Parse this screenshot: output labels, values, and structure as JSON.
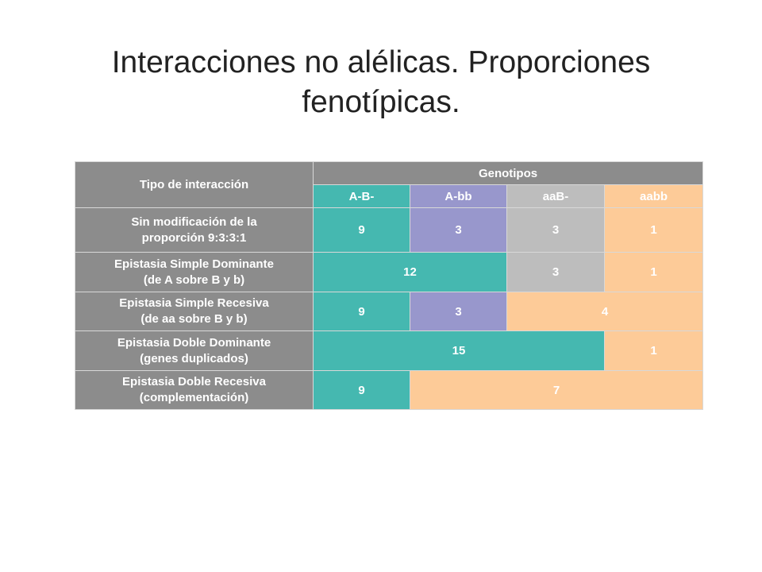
{
  "title": {
    "line1": "Interacciones no alélicas. Proporciones",
    "line2": "fenotípicas."
  },
  "colors": {
    "header": "#8c8c8c",
    "A-B-": "#45b8b0",
    "A-bb": "#9897cc",
    "aaB-": "#bdbdbd",
    "aabb": "#fdcb98"
  },
  "chart_data": {
    "type": "table",
    "header": {
      "row_header": "Tipo de interacción",
      "group_header": "Genotipos",
      "columns": [
        "A-B-",
        "A-bb",
        "aaB-",
        "aabb"
      ]
    },
    "rows": [
      {
        "label": [
          "Sin modificación de la",
          "proporción 9:3:3:1"
        ],
        "cells": [
          {
            "value": "9",
            "span": 1,
            "color": "#45b8b0"
          },
          {
            "value": "3",
            "span": 1,
            "color": "#9897cc"
          },
          {
            "value": "3",
            "span": 1,
            "color": "#bdbdbd"
          },
          {
            "value": "1",
            "span": 1,
            "color": "#fdcb98"
          }
        ]
      },
      {
        "label": [
          "Epistasia Simple Dominante",
          "(de A sobre B y b)"
        ],
        "cells": [
          {
            "value": "12",
            "span": 2,
            "color": "#45b8b0"
          },
          {
            "value": "3",
            "span": 1,
            "color": "#bdbdbd"
          },
          {
            "value": "1",
            "span": 1,
            "color": "#fdcb98"
          }
        ]
      },
      {
        "label": [
          "Epistasia Simple Recesiva",
          "(de aa sobre B y b)"
        ],
        "cells": [
          {
            "value": "9",
            "span": 1,
            "color": "#45b8b0"
          },
          {
            "value": "3",
            "span": 1,
            "color": "#9897cc"
          },
          {
            "value": "4",
            "span": 2,
            "color": "#fdcb98"
          }
        ]
      },
      {
        "label": [
          "Epistasia Doble Dominante",
          "(genes duplicados)"
        ],
        "cells": [
          {
            "value": "15",
            "span": 3,
            "color": "#45b8b0"
          },
          {
            "value": "1",
            "span": 1,
            "color": "#fdcb98"
          }
        ]
      },
      {
        "label": [
          "Epistasia Doble Recesiva",
          "(complementación)"
        ],
        "cells": [
          {
            "value": "9",
            "span": 1,
            "color": "#45b8b0"
          },
          {
            "value": "7",
            "span": 3,
            "color": "#fdcb98"
          }
        ]
      }
    ]
  }
}
